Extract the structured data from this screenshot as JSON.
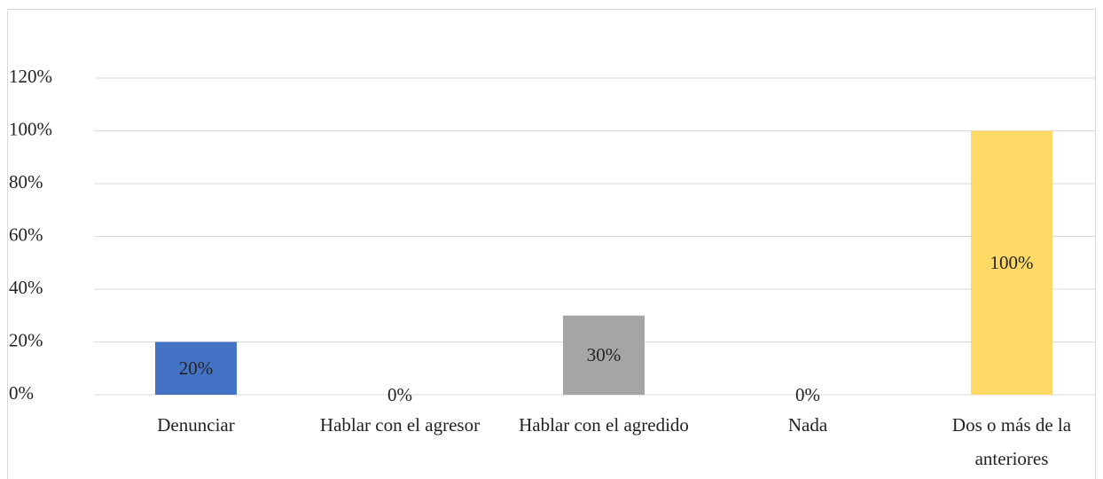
{
  "chart_data": {
    "type": "bar",
    "categories": [
      "Denunciar",
      "Hablar con el agresor",
      "Hablar con el agredido",
      "Nada",
      "Dos o más de la anteriores"
    ],
    "values": [
      20,
      0,
      30,
      0,
      100
    ],
    "value_labels": [
      "20%",
      "0%",
      "30%",
      "0%",
      "100%"
    ],
    "colors": [
      "#4472c4",
      "#a5a5a5",
      "#a5a5a5",
      "#a5a5a5",
      "#ffd966"
    ],
    "ylim": [
      0,
      120
    ],
    "yticks": [
      {
        "value": 0,
        "label": "0%"
      },
      {
        "value": 20,
        "label": "20%"
      },
      {
        "value": 40,
        "label": "40%"
      },
      {
        "value": 60,
        "label": "60%"
      },
      {
        "value": 80,
        "label": "80%"
      },
      {
        "value": 100,
        "label": "100%"
      },
      {
        "value": 120,
        "label": "120%"
      }
    ],
    "grid": true
  }
}
